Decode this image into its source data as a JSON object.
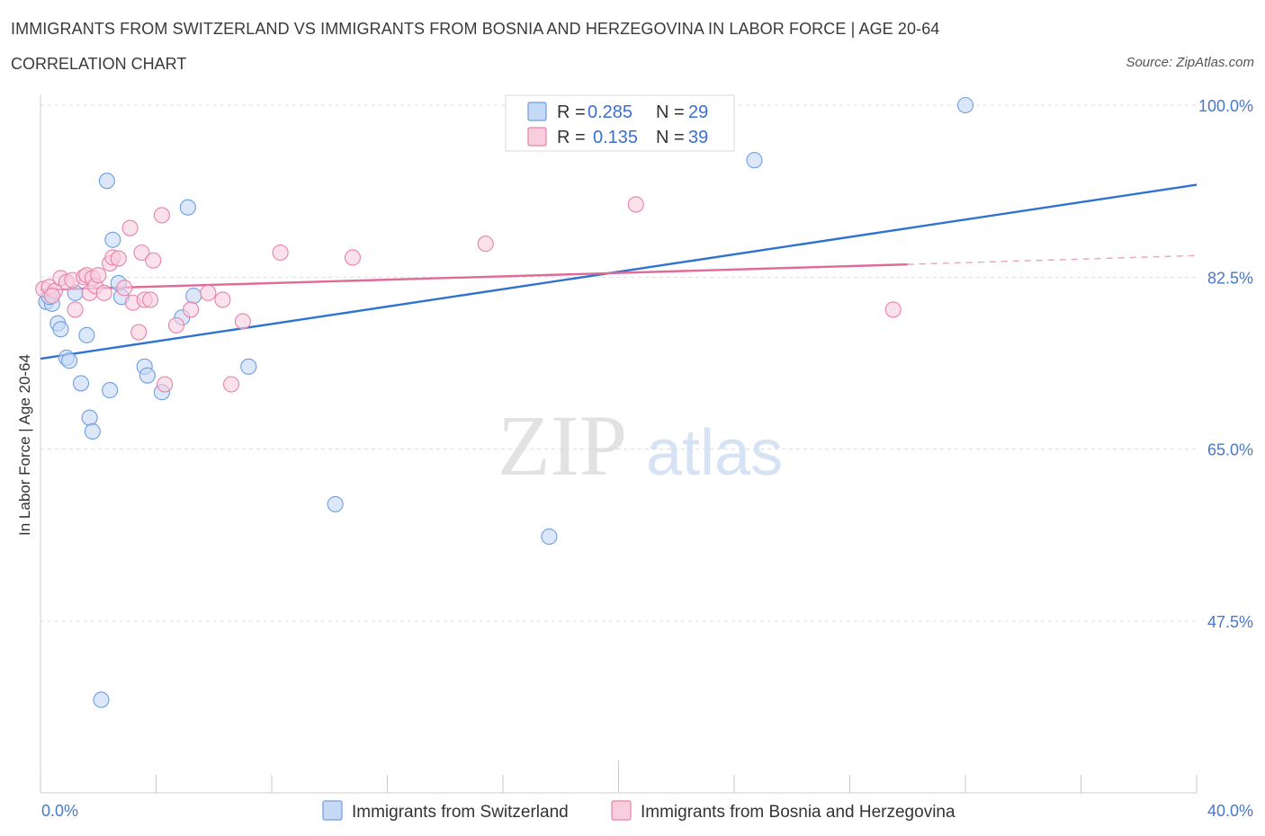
{
  "header": {
    "title": "IMMIGRANTS FROM SWITZERLAND VS IMMIGRANTS FROM BOSNIA AND HERZEGOVINA IN LABOR FORCE | AGE 20-64",
    "subtitle": "CORRELATION CHART",
    "source": "Source: ZipAtlas.com"
  },
  "watermark": {
    "zip": "ZIP",
    "atlas": "atlas"
  },
  "legend": {
    "r_label": "R =",
    "n_label": "N =",
    "entries": [
      {
        "r": "0.285",
        "n": "29"
      },
      {
        "r": "0.135",
        "n": "39"
      }
    ]
  },
  "chart_data": {
    "type": "scatter",
    "title": "IMMIGRANTS FROM SWITZERLAND VS IMMIGRANTS FROM BOSNIA AND HERZEGOVINA IN LABOR FORCE | AGE 20-64",
    "ylabel": "In Labor Force | Age 20-64",
    "xlabel": "",
    "xlim": [
      0,
      40
    ],
    "ylim": [
      30,
      100
    ],
    "x_tick_labels": [
      "0.0%",
      "40.0%"
    ],
    "y_ticks": [
      47.5,
      65.0,
      82.5,
      100.0
    ],
    "y_tick_labels": [
      "47.5%",
      "65.0%",
      "82.5%",
      "100.0%"
    ],
    "grid": true,
    "legend_position": "top-center",
    "series": [
      {
        "name": "Immigrants from Switzerland",
        "color": "#6f9de0",
        "fill": "#c5d8f5",
        "trend": {
          "x": [
            0,
            40
          ],
          "y": [
            74.2,
            91.9
          ]
        },
        "points": [
          [
            0.2,
            80.0
          ],
          [
            0.4,
            79.8
          ],
          [
            0.6,
            77.8
          ],
          [
            0.7,
            77.2
          ],
          [
            0.9,
            74.3
          ],
          [
            1.0,
            74.0
          ],
          [
            1.2,
            80.9
          ],
          [
            1.4,
            71.7
          ],
          [
            1.6,
            76.6
          ],
          [
            1.7,
            68.2
          ],
          [
            1.8,
            66.8
          ],
          [
            2.3,
            92.3
          ],
          [
            2.4,
            71.0
          ],
          [
            2.5,
            86.3
          ],
          [
            2.7,
            81.9
          ],
          [
            2.8,
            80.5
          ],
          [
            3.6,
            73.4
          ],
          [
            3.7,
            72.5
          ],
          [
            4.2,
            70.8
          ],
          [
            4.9,
            78.4
          ],
          [
            5.1,
            89.6
          ],
          [
            5.3,
            80.6
          ],
          [
            7.2,
            73.4
          ],
          [
            10.2,
            59.4
          ],
          [
            17.6,
            56.1
          ],
          [
            24.7,
            94.4
          ],
          [
            32.0,
            100.0
          ],
          [
            2.1,
            39.5
          ],
          [
            0.3,
            80.5
          ]
        ]
      },
      {
        "name": "Immigrants from Bosnia and Herzegovina",
        "color": "#e882a8",
        "fill": "#f8cddd",
        "trend": {
          "x": [
            0,
            30
          ],
          "y": [
            81.2,
            83.8
          ]
        },
        "trend_dashed": {
          "x": [
            30,
            40
          ],
          "y": [
            83.8,
            84.7
          ]
        },
        "points": [
          [
            0.1,
            81.3
          ],
          [
            0.3,
            81.5
          ],
          [
            0.5,
            81.1
          ],
          [
            0.7,
            82.4
          ],
          [
            0.9,
            82.0
          ],
          [
            1.1,
            82.2
          ],
          [
            1.2,
            79.2
          ],
          [
            1.5,
            82.5
          ],
          [
            1.6,
            82.7
          ],
          [
            1.7,
            80.9
          ],
          [
            1.8,
            82.4
          ],
          [
            1.9,
            81.6
          ],
          [
            2.0,
            82.7
          ],
          [
            2.2,
            80.9
          ],
          [
            2.4,
            83.9
          ],
          [
            2.5,
            84.5
          ],
          [
            2.7,
            84.4
          ],
          [
            2.9,
            81.4
          ],
          [
            3.1,
            87.5
          ],
          [
            3.2,
            79.9
          ],
          [
            3.4,
            76.9
          ],
          [
            3.5,
            85.0
          ],
          [
            3.6,
            80.2
          ],
          [
            3.8,
            80.2
          ],
          [
            3.9,
            84.2
          ],
          [
            4.2,
            88.8
          ],
          [
            4.3,
            71.6
          ],
          [
            4.7,
            77.6
          ],
          [
            5.2,
            79.2
          ],
          [
            5.8,
            80.9
          ],
          [
            6.3,
            80.2
          ],
          [
            6.6,
            71.6
          ],
          [
            7.0,
            78.0
          ],
          [
            8.3,
            85.0
          ],
          [
            10.8,
            84.5
          ],
          [
            15.4,
            85.9
          ],
          [
            20.6,
            89.9
          ],
          [
            29.5,
            79.2
          ],
          [
            0.4,
            80.6
          ]
        ]
      }
    ]
  }
}
